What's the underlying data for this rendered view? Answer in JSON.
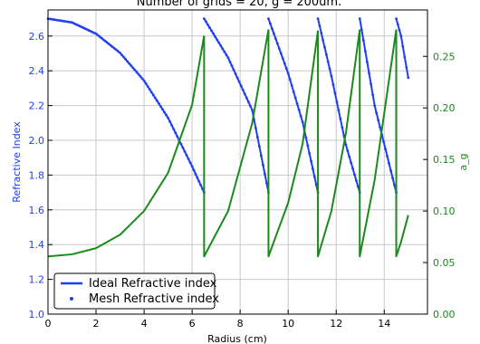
{
  "colors": {
    "ideal": "#1f3ff2",
    "mesh": "#1f3ff2",
    "a_g": "#1a8a1a",
    "left_axis": "#1f3ff2",
    "right_axis": "#1a8a1a",
    "grid": "#c8c8c8",
    "frame": "#000000"
  },
  "chart_data": {
    "type": "line",
    "title_fragment": "Number of grids = 20, g = 200um.",
    "xlabel": "Radius (cm)",
    "ylabel_left": "Refractive Index",
    "ylabel_right": "a_g",
    "xlim": [
      0,
      15.8
    ],
    "ylim_left": [
      1.0,
      2.75
    ],
    "ylim_right": [
      0.0,
      0.295
    ],
    "x_ticks": [
      0,
      2,
      4,
      6,
      8,
      10,
      12,
      14
    ],
    "y_ticks_left": [
      1.0,
      1.2,
      1.4,
      1.6,
      1.8,
      2.0,
      2.2,
      2.4,
      2.6
    ],
    "y_ticks_right": [
      0.0,
      0.05,
      0.1,
      0.15,
      0.2,
      0.25
    ],
    "grid": true,
    "legend": {
      "placement": "lower-left",
      "entries": [
        "Ideal Refractive index",
        "Mesh Refractive index"
      ]
    },
    "series": [
      {
        "name": "Ideal Refractive index",
        "axis": "left",
        "style": "line",
        "segments": [
          [
            [
              0,
              2.7
            ],
            [
              1,
              2.678
            ],
            [
              2,
              2.613
            ],
            [
              3,
              2.503
            ],
            [
              4,
              2.343
            ],
            [
              5,
              2.129
            ],
            [
              6,
              1.85
            ],
            [
              6.5,
              1.7
            ]
          ],
          [
            [
              6.5,
              2.7
            ],
            [
              7.5,
              2.475
            ],
            [
              8.5,
              2.175
            ],
            [
              9.18,
              1.7
            ]
          ],
          [
            [
              9.18,
              2.7
            ],
            [
              10.0,
              2.385
            ],
            [
              10.6,
              2.105
            ],
            [
              11.24,
              1.7
            ]
          ],
          [
            [
              11.24,
              2.7
            ],
            [
              11.8,
              2.37
            ],
            [
              12.4,
              1.975
            ],
            [
              12.98,
              1.7
            ]
          ],
          [
            [
              12.98,
              2.7
            ],
            [
              13.6,
              2.2
            ],
            [
              14.5,
              1.7
            ]
          ],
          [
            [
              14.5,
              2.7
            ],
            [
              14.7,
              2.6
            ],
            [
              15.0,
              2.36
            ]
          ]
        ]
      },
      {
        "name": "Mesh Refractive index",
        "axis": "left",
        "style": "dots",
        "segments": [
          [
            [
              0,
              2.7
            ],
            [
              1,
              2.678
            ],
            [
              2,
              2.613
            ],
            [
              3,
              2.503
            ],
            [
              4,
              2.343
            ],
            [
              5,
              2.129
            ],
            [
              6,
              1.85
            ],
            [
              6.5,
              1.7
            ]
          ],
          [
            [
              6.5,
              2.7
            ],
            [
              7.5,
              2.475
            ],
            [
              8.5,
              2.175
            ],
            [
              9.18,
              1.7
            ]
          ],
          [
            [
              9.18,
              2.7
            ],
            [
              10.0,
              2.385
            ],
            [
              10.6,
              2.105
            ],
            [
              11.24,
              1.7
            ]
          ],
          [
            [
              11.24,
              2.7
            ],
            [
              11.8,
              2.37
            ],
            [
              12.4,
              1.975
            ],
            [
              12.98,
              1.7
            ]
          ],
          [
            [
              12.98,
              2.7
            ],
            [
              13.6,
              2.2
            ],
            [
              14.5,
              1.7
            ]
          ],
          [
            [
              14.5,
              2.7
            ],
            [
              14.7,
              2.6
            ],
            [
              15.0,
              2.36
            ]
          ]
        ]
      },
      {
        "axis": "right",
        "style": "line",
        "segments": [
          [
            [
              0,
              0.056
            ],
            [
              1,
              0.058
            ],
            [
              2,
              0.064
            ],
            [
              3,
              0.077
            ],
            [
              4,
              0.1
            ],
            [
              5,
              0.137
            ],
            [
              6,
              0.203
            ],
            [
              6.5,
              0.27
            ]
          ],
          [
            [
              6.5,
              0.27
            ],
            [
              6.5,
              0.056
            ],
            [
              7.5,
              0.1
            ],
            [
              8.5,
              0.185
            ],
            [
              9.18,
              0.276
            ]
          ],
          [
            [
              9.18,
              0.276
            ],
            [
              9.18,
              0.056
            ],
            [
              10.0,
              0.108
            ],
            [
              10.6,
              0.165
            ],
            [
              11.24,
              0.275
            ]
          ],
          [
            [
              11.24,
              0.275
            ],
            [
              11.24,
              0.056
            ],
            [
              11.8,
              0.1
            ],
            [
              12.4,
              0.175
            ],
            [
              12.98,
              0.276
            ]
          ],
          [
            [
              12.98,
              0.276
            ],
            [
              12.98,
              0.056
            ],
            [
              13.6,
              0.13
            ],
            [
              14.5,
              0.276
            ]
          ],
          [
            [
              14.5,
              0.276
            ],
            [
              14.5,
              0.056
            ],
            [
              14.7,
              0.07
            ],
            [
              15.0,
              0.096
            ]
          ]
        ]
      }
    ]
  }
}
